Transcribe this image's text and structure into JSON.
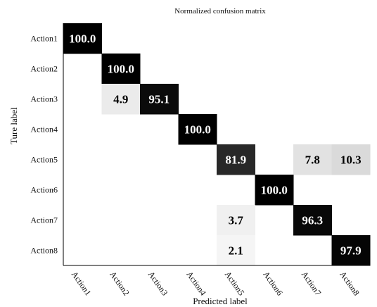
{
  "chart_data": {
    "type": "heatmap",
    "title": "Normalized confusion matrix",
    "xlabel": "Predicted label",
    "ylabel": "Ture label",
    "x_categories": [
      "Action1",
      "Action2",
      "Action3",
      "Action4",
      "Action5",
      "Action6",
      "Action7",
      "Action8"
    ],
    "y_categories": [
      "Action1",
      "Action2",
      "Action3",
      "Action4",
      "Action5",
      "Action6",
      "Action7",
      "Action8"
    ],
    "cells": [
      {
        "row": "Action1",
        "col": "Action1",
        "value": 100.0
      },
      {
        "row": "Action2",
        "col": "Action2",
        "value": 100.0
      },
      {
        "row": "Action3",
        "col": "Action2",
        "value": 4.9
      },
      {
        "row": "Action3",
        "col": "Action3",
        "value": 95.1
      },
      {
        "row": "Action4",
        "col": "Action4",
        "value": 100.0
      },
      {
        "row": "Action5",
        "col": "Action5",
        "value": 81.9
      },
      {
        "row": "Action5",
        "col": "Action7",
        "value": 7.8
      },
      {
        "row": "Action5",
        "col": "Action8",
        "value": 10.3
      },
      {
        "row": "Action6",
        "col": "Action6",
        "value": 100.0
      },
      {
        "row": "Action7",
        "col": "Action5",
        "value": 3.7
      },
      {
        "row": "Action7",
        "col": "Action7",
        "value": 96.3
      },
      {
        "row": "Action8",
        "col": "Action5",
        "value": 2.1
      },
      {
        "row": "Action8",
        "col": "Action8",
        "value": 97.9
      }
    ],
    "value_range": [
      0,
      100
    ],
    "colormap": "grayscale (white = 0, black = 100)",
    "grid": false
  }
}
